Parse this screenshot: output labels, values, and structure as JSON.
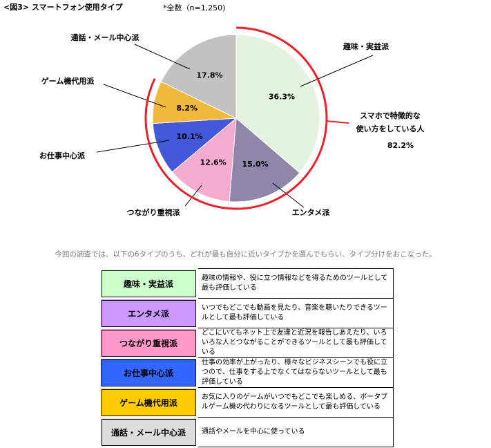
{
  "chart_data": {
    "type": "pie",
    "title": "<図3> スマートフォン使用タイプ",
    "subtitle": "*全数（n=1,250)",
    "categories": [
      "趣味・実益派",
      "エンタメ派",
      "つながり重視派",
      "お仕事中心派",
      "ゲーム機代用派",
      "通話・メール中心派"
    ],
    "values": [
      36.3,
      15.0,
      12.6,
      10.1,
      8.2,
      17.8
    ],
    "value_labels": [
      "36.3%",
      "15.0%",
      "12.6%",
      "10.1%",
      "8.2%",
      "17.8%"
    ],
    "colors": [
      "#e4f3df",
      "#8f86a9",
      "#f4abd0",
      "#4258d6",
      "#f2b83a",
      "#c2c2c2"
    ],
    "annotation": {
      "lines": [
        "スマホで特徴的な",
        "使い方をしている人"
      ],
      "value": 82.2,
      "label": "82.2%",
      "color": "#e8202a"
    }
  },
  "caption": "今回の調査では、以下の6タイプのうち、どれが最も自分に近いタイプかを選んでもらい、タイプ分けをおこなった。",
  "table": {
    "rows": [
      {
        "name": "趣味・実益派",
        "description": "趣味の情報や、役に立つ情報などを得るためのツールとして最も評価している",
        "color": "#ccffcc"
      },
      {
        "name": "エンタメ派",
        "description": "いつでもどこでも動画を見たり、音楽を聴いたりできるツールとして最も評価している",
        "color": "#cc99ff"
      },
      {
        "name": "つながり重視派",
        "description": "どこにいてもネット上で友達と近況を報告しあえたり、いろいろな人とつながることができるツールとして最も評価している",
        "color": "#ff99cc"
      },
      {
        "name": "お仕事中心派",
        "description": "仕事の効率が上がったり、様々なビジネスシーンでも役に立つので、仕事をする上でなくてはならないツールとして最も評価している",
        "color": "#3366ff"
      },
      {
        "name": "ゲーム機代用派",
        "description": "お気に入りのゲームがいつでもどこでも楽しめる、ポータブルゲーム機の代わりになるツールとして最も評価している",
        "color": "#ffcc00"
      },
      {
        "name": "通話・メール中心派",
        "description": "通話やメールを中心に使っている",
        "color": "#dddddd"
      }
    ]
  }
}
